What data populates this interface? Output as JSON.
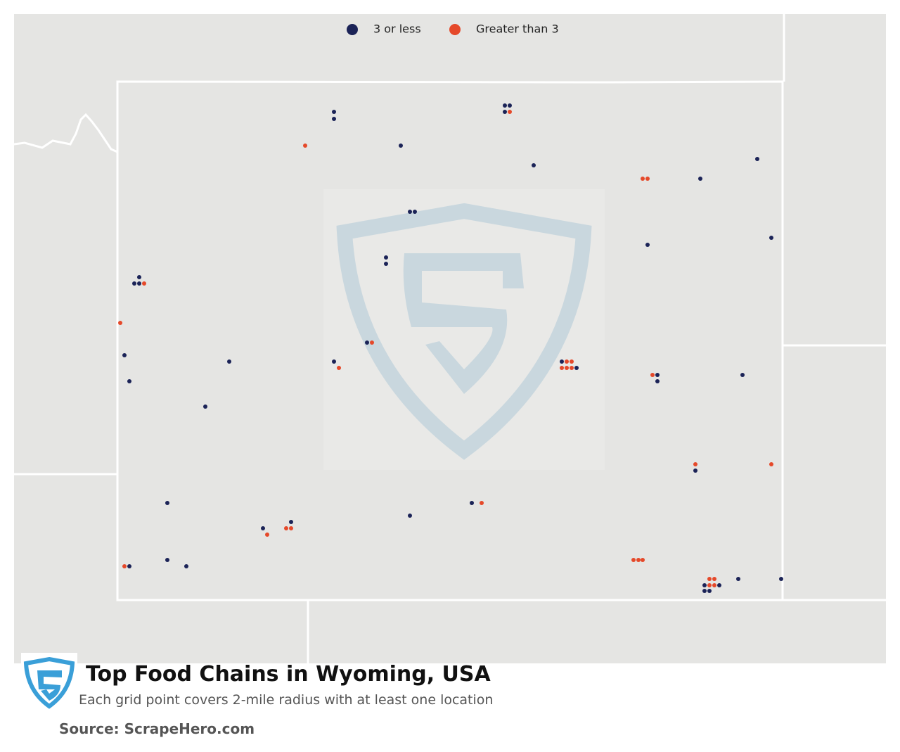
{
  "legend": [
    {
      "label": "3 or less",
      "color": "#1b2357"
    },
    {
      "label": "Greater than 3",
      "color": "#e5492a"
    }
  ],
  "title": "Top Food Chains in Wyoming, USA",
  "subtitle": "Each grid point covers 2-mile radius with at least one location",
  "source": "Source: ScrapeHero.com"
}
